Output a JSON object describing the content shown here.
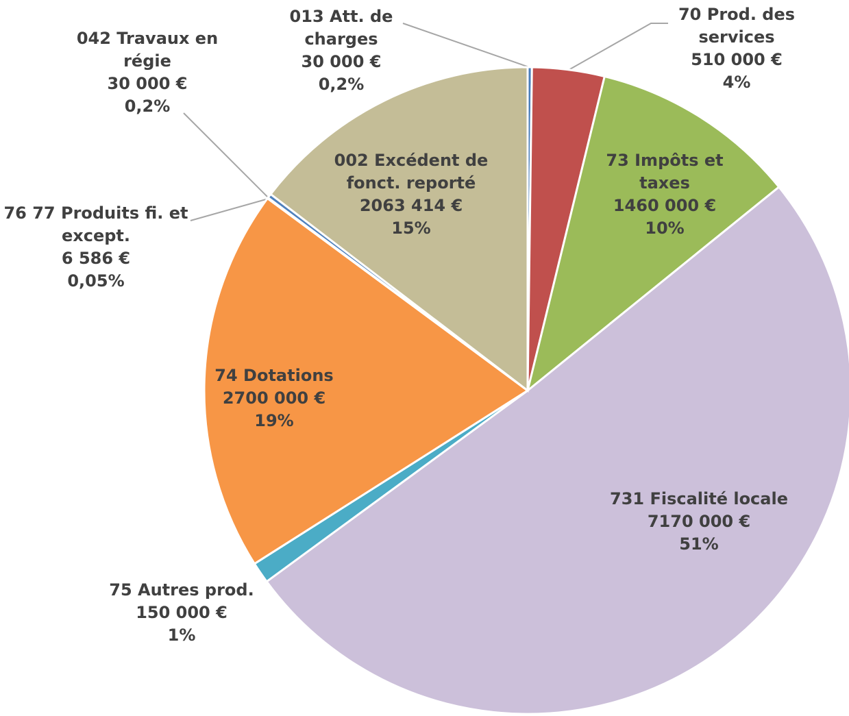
{
  "chart_data": {
    "type": "pie",
    "categories": [
      "013 Att. de charges",
      "70 Prod. des services",
      "73 Impôts et taxes",
      "731 Fiscalité locale",
      "75 Autres prod.",
      "74 Dotations",
      "76 77 Produits fi. et except.",
      "042 Travaux en régie",
      "002 Excédent de fonct. reporté"
    ],
    "values": [
      30000,
      510000,
      1460000,
      7170000,
      150000,
      2700000,
      6586,
      30000,
      2063414
    ],
    "value_labels": [
      "30 000 €",
      "510 000 €",
      "1460 000 €",
      "7170 000 €",
      "150 000 €",
      "2700 000 €",
      "6 586 €",
      "30 000 €",
      "2063 414 €"
    ],
    "percents": [
      0.2,
      4,
      10,
      51,
      1,
      19,
      0.05,
      0.2,
      15
    ],
    "percent_labels": [
      "0,2%",
      "4%",
      "10%",
      "51%",
      "1%",
      "19%",
      "0,05%",
      "0,2%",
      "15%"
    ],
    "colors": [
      "#4a7ebb",
      "#c0504d",
      "#9bbb59",
      "#ccc0da",
      "#4bacc6",
      "#f79646",
      "#8b2f2f",
      "#4f81bd",
      "#c4bd97"
    ]
  }
}
